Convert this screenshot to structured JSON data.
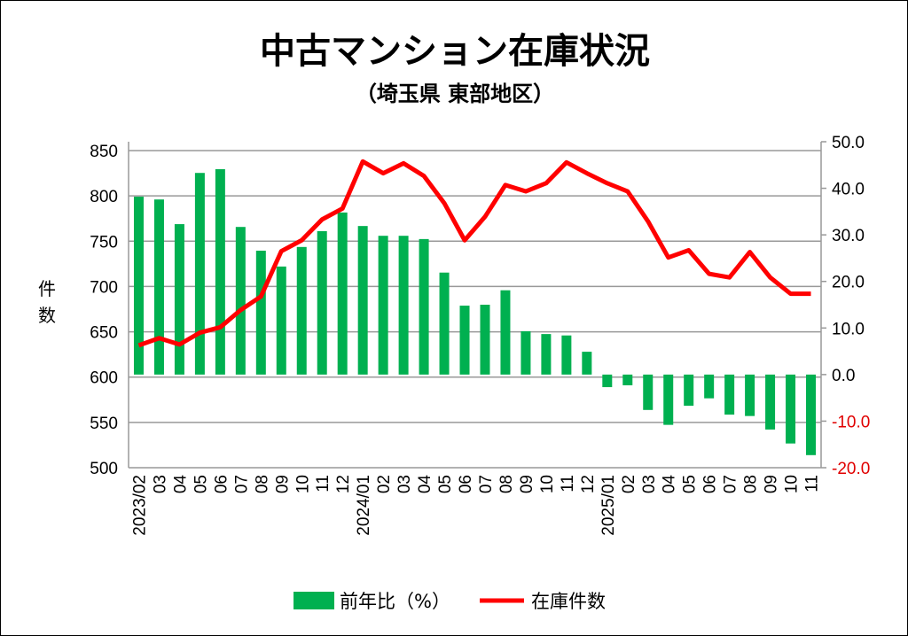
{
  "chart_data": {
    "type": "bar+line",
    "title": "中古マンション在庫状況",
    "subtitle": "（埼玉県 東部地区）",
    "ylabel_left": "件数",
    "ylabel_left_chars": [
      "件",
      "数"
    ],
    "ylim_left": [
      500,
      850
    ],
    "yticks_left": [
      "850",
      "800",
      "750",
      "700",
      "650",
      "600",
      "550",
      "500"
    ],
    "ytick_values_left": [
      850,
      800,
      750,
      700,
      650,
      600,
      550,
      500
    ],
    "ylim_right": [
      -20,
      50
    ],
    "yticks_right": [
      "50.0",
      "40.0",
      "30.0",
      "20.0",
      "10.0",
      "0.0",
      "-10.0",
      "-20.0"
    ],
    "ytick_values_right": [
      50,
      40,
      30,
      20,
      10,
      0,
      -10,
      -20
    ],
    "grid": true,
    "legend_position": "bottom",
    "categories": [
      "2023/02",
      "03",
      "04",
      "05",
      "06",
      "07",
      "08",
      "09",
      "10",
      "11",
      "12",
      "2024/01",
      "02",
      "03",
      "04",
      "05",
      "06",
      "07",
      "08",
      "09",
      "10",
      "11",
      "12",
      "2025/01",
      "02",
      "03",
      "04",
      "05",
      "06",
      "07",
      "08",
      "09",
      "10",
      "11"
    ],
    "series": [
      {
        "name": "前年比（%）",
        "type": "bar",
        "axis": "right",
        "color": "#00b050",
        "values": [
          38.2,
          37.6,
          32.3,
          43.3,
          44.1,
          31.7,
          26.6,
          23.2,
          27.4,
          30.8,
          34.8,
          31.9,
          29.8,
          29.8,
          29.1,
          21.9,
          14.8,
          15.0,
          18.1,
          9.3,
          8.7,
          8.4,
          4.9,
          -2.7,
          -2.3,
          -7.6,
          -10.8,
          -6.7,
          -5.1,
          -8.6,
          -8.9,
          -11.8,
          -14.8,
          -17.3
        ]
      },
      {
        "name": "在庫件数",
        "type": "line",
        "axis": "left",
        "color": "#ff0000",
        "values": [
          635,
          643,
          636,
          649,
          655,
          674,
          689,
          739,
          751,
          774,
          786,
          838,
          825,
          836,
          822,
          792,
          751,
          777,
          812,
          805,
          814,
          837,
          825,
          814,
          805,
          772,
          732,
          740,
          714,
          710,
          738,
          710,
          692,
          692
        ]
      }
    ]
  }
}
